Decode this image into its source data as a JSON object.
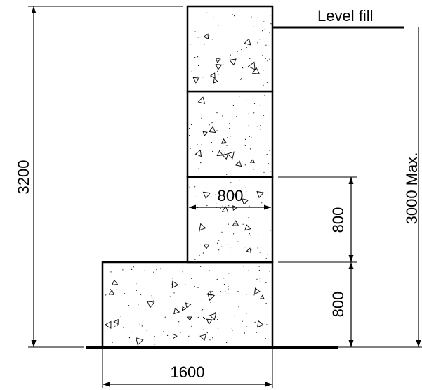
{
  "labels": {
    "overall_height": "3200",
    "fill_note": "Level fill",
    "max_height": "3000 Max.",
    "upper_block_width": "800",
    "upper_block_height": "800",
    "base_block_height": "800",
    "base_width": "1600"
  },
  "colors": {
    "line": "#000000",
    "background": "#ffffff",
    "speckle": "#000000"
  },
  "blocks": [
    {
      "role": "base block",
      "width_mm": 1600,
      "height_mm": 800
    },
    {
      "role": "stacked block 1",
      "width_mm": 800,
      "height_mm": 800
    },
    {
      "role": "stacked block 2",
      "width_mm": 800,
      "height_mm": 800
    },
    {
      "role": "stacked block 3",
      "width_mm": 800,
      "height_mm": 800
    }
  ]
}
